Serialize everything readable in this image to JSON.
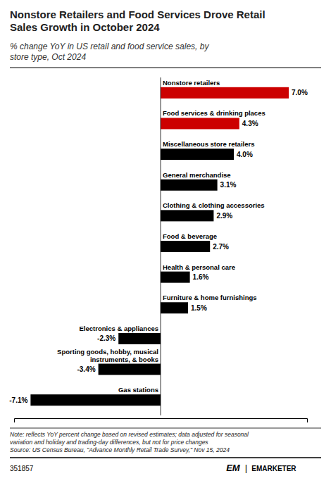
{
  "chart_data": {
    "type": "bar",
    "orientation": "horizontal",
    "title": "Nonstore Retailers and Food Services Drove Retail\nSales Growth in October 2024",
    "subtitle": "% change YoY in US retail and food service sales, by\nstore type, Oct 2024",
    "categories": [
      "Nonstore retailers",
      "Food services & drinking places",
      "Miscellaneous store retailers",
      "General merchandise",
      "Clothing & clothing accessories",
      "Food & beverage",
      "Health & personal care",
      "Furniture & home furnishings",
      "Electronics & appliances",
      "Sporting goods, hobby, musical\ninstruments, & books",
      "Gas stations"
    ],
    "values": [
      7.0,
      4.3,
      4.0,
      3.1,
      2.9,
      2.7,
      1.6,
      1.5,
      -2.3,
      -3.4,
      -7.1
    ],
    "value_labels": [
      "7.0%",
      "4.3%",
      "4.0%",
      "3.1%",
      "2.9%",
      "2.7%",
      "1.6%",
      "1.5%",
      "-2.3%",
      "-3.4%",
      "-7.1%"
    ],
    "colors": [
      "#cc0000",
      "#cc0000",
      "#000000",
      "#000000",
      "#000000",
      "#000000",
      "#000000",
      "#000000",
      "#000000",
      "#000000",
      "#000000"
    ],
    "xlim": [
      -8.0,
      8.0
    ],
    "data_labels": true,
    "tick_labels": false,
    "grid": false,
    "annotations": [
      "Note: reflects YoY percent change based on revised estimates; data adjusted for seasonal",
      "variation and holiday and trading-day differences, but not for price changes",
      "Source: US Census Bureau, \"Advance Monthly Retail Trade Survey,\" Nov 15, 2024",
      "351857",
      "EM",
      "|",
      "EMARKETER"
    ]
  }
}
